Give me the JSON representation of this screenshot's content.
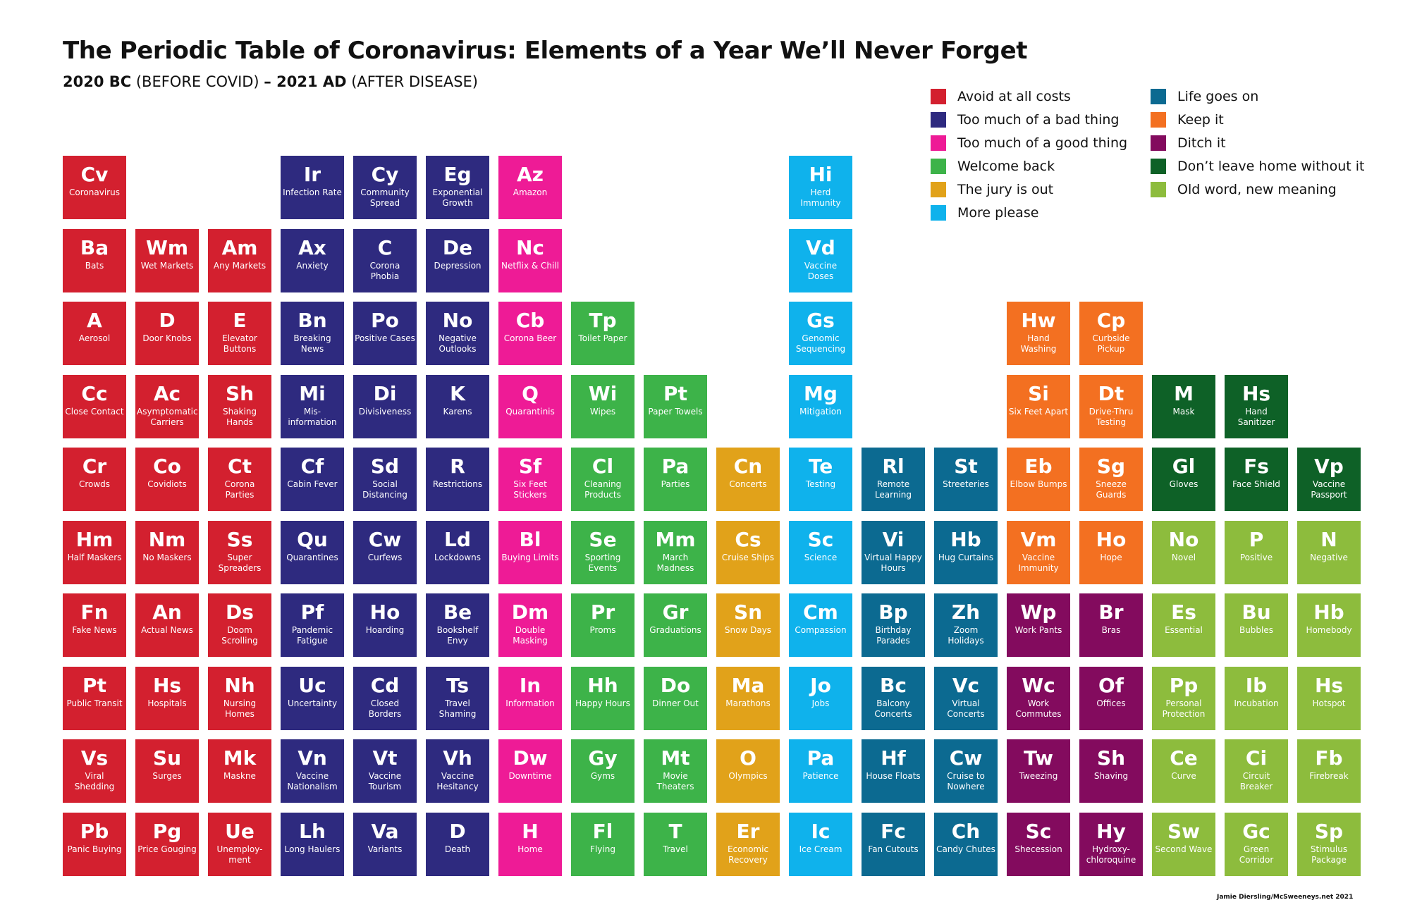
{
  "title": "The Periodic Table of Coronavirus: Elements of a Year We’ll Never Forget",
  "subtitle": {
    "part1_bold": "2020 BC",
    "part1": " (BEFORE COVID) ",
    "part2_bold": "– 2021 AD",
    "part2": " (AFTER DISEASE)"
  },
  "credit": "Jamie Diersling/McSweeneys.net 2021",
  "legend": [
    {
      "key": "avoid",
      "label": "Avoid at all costs",
      "color": "#d3202f"
    },
    {
      "key": "bad",
      "label": "Too much of a bad thing",
      "color": "#2e2a7f"
    },
    {
      "key": "good",
      "label": "Too much of a good thing",
      "color": "#ee1b96"
    },
    {
      "key": "welcome",
      "label": "Welcome back",
      "color": "#3db349"
    },
    {
      "key": "jury",
      "label": "The jury is out",
      "color": "#e1a21a"
    },
    {
      "key": "more",
      "label": "More please",
      "color": "#0fb2ec"
    },
    {
      "key": "life",
      "label": "Life goes on",
      "color": "#0c6a91"
    },
    {
      "key": "keep",
      "label": "Keep it",
      "color": "#f37021"
    },
    {
      "key": "ditch",
      "label": "Ditch it",
      "color": "#830b5e"
    },
    {
      "key": "dont",
      "label": "Don’t leave home without it",
      "color": "#0e6127"
    },
    {
      "key": "oldword",
      "label": "Old word, new meaning",
      "color": "#8dbc3d"
    }
  ],
  "elements": [
    {
      "sym": "Cv",
      "name": "Coronavirus",
      "cat": "avoid",
      "col": 0,
      "row": 0
    },
    {
      "sym": "Ir",
      "name": "Infection Rate",
      "cat": "bad",
      "col": 3,
      "row": 0
    },
    {
      "sym": "Cy",
      "name": "Community Spread",
      "cat": "bad",
      "col": 4,
      "row": 0
    },
    {
      "sym": "Eg",
      "name": "Exponential Growth",
      "cat": "bad",
      "col": 5,
      "row": 0
    },
    {
      "sym": "Az",
      "name": "Amazon",
      "cat": "good",
      "col": 6,
      "row": 0
    },
    {
      "sym": "Hi",
      "name": "Herd Immunity",
      "cat": "more",
      "col": 10,
      "row": 0
    },
    {
      "sym": "Ba",
      "name": "Bats",
      "cat": "avoid",
      "col": 0,
      "row": 1
    },
    {
      "sym": "Wm",
      "name": "Wet Markets",
      "cat": "avoid",
      "col": 1,
      "row": 1
    },
    {
      "sym": "Am",
      "name": "Any Markets",
      "cat": "avoid",
      "col": 2,
      "row": 1
    },
    {
      "sym": "Ax",
      "name": "Anxiety",
      "cat": "bad",
      "col": 3,
      "row": 1
    },
    {
      "sym": "C",
      "name": "Corona Phobia",
      "cat": "bad",
      "col": 4,
      "row": 1
    },
    {
      "sym": "De",
      "name": "Depression",
      "cat": "bad",
      "col": 5,
      "row": 1
    },
    {
      "sym": "Nc",
      "name": "Netflix & Chill",
      "cat": "good",
      "col": 6,
      "row": 1
    },
    {
      "sym": "Vd",
      "name": "Vaccine Doses",
      "cat": "more",
      "col": 10,
      "row": 1
    },
    {
      "sym": "A",
      "name": "Aerosol",
      "cat": "avoid",
      "col": 0,
      "row": 2
    },
    {
      "sym": "D",
      "name": "Door Knobs",
      "cat": "avoid",
      "col": 1,
      "row": 2
    },
    {
      "sym": "E",
      "name": "Elevator Buttons",
      "cat": "avoid",
      "col": 2,
      "row": 2
    },
    {
      "sym": "Bn",
      "name": "Breaking News",
      "cat": "bad",
      "col": 3,
      "row": 2
    },
    {
      "sym": "Po",
      "name": "Positive Cases",
      "cat": "bad",
      "col": 4,
      "row": 2
    },
    {
      "sym": "No",
      "name": "Negative Outlooks",
      "cat": "bad",
      "col": 5,
      "row": 2
    },
    {
      "sym": "Cb",
      "name": "Corona Beer",
      "cat": "good",
      "col": 6,
      "row": 2
    },
    {
      "sym": "Tp",
      "name": "Toilet Paper",
      "cat": "welcome",
      "col": 7,
      "row": 2
    },
    {
      "sym": "Gs",
      "name": "Genomic Sequencing",
      "cat": "more",
      "col": 10,
      "row": 2
    },
    {
      "sym": "Hw",
      "name": "Hand Washing",
      "cat": "keep",
      "col": 13,
      "row": 2
    },
    {
      "sym": "Cp",
      "name": "Curbside Pickup",
      "cat": "keep",
      "col": 14,
      "row": 2
    },
    {
      "sym": "Cc",
      "name": "Close Contact",
      "cat": "avoid",
      "col": 0,
      "row": 3
    },
    {
      "sym": "Ac",
      "name": "Asymptomatic Carriers",
      "cat": "avoid",
      "col": 1,
      "row": 3
    },
    {
      "sym": "Sh",
      "name": "Shaking Hands",
      "cat": "avoid",
      "col": 2,
      "row": 3
    },
    {
      "sym": "Mi",
      "name": "Mis-information",
      "cat": "bad",
      "col": 3,
      "row": 3
    },
    {
      "sym": "Di",
      "name": "Divisiveness",
      "cat": "bad",
      "col": 4,
      "row": 3
    },
    {
      "sym": "K",
      "name": "Karens",
      "cat": "bad",
      "col": 5,
      "row": 3
    },
    {
      "sym": "Q",
      "name": "Quarantinis",
      "cat": "good",
      "col": 6,
      "row": 3
    },
    {
      "sym": "Wi",
      "name": "Wipes",
      "cat": "welcome",
      "col": 7,
      "row": 3
    },
    {
      "sym": "Pt",
      "name": "Paper Towels",
      "cat": "welcome",
      "col": 8,
      "row": 3
    },
    {
      "sym": "Mg",
      "name": "Mitigation",
      "cat": "more",
      "col": 10,
      "row": 3
    },
    {
      "sym": "Si",
      "name": "Six Feet Apart",
      "cat": "keep",
      "col": 13,
      "row": 3
    },
    {
      "sym": "Dt",
      "name": "Drive-Thru Testing",
      "cat": "keep",
      "col": 14,
      "row": 3
    },
    {
      "sym": "M",
      "name": "Mask",
      "cat": "dont",
      "col": 15,
      "row": 3
    },
    {
      "sym": "Hs",
      "name": "Hand Sanitizer",
      "cat": "dont",
      "col": 16,
      "row": 3
    },
    {
      "sym": "Cr",
      "name": "Crowds",
      "cat": "avoid",
      "col": 0,
      "row": 4
    },
    {
      "sym": "Co",
      "name": "Covidiots",
      "cat": "avoid",
      "col": 1,
      "row": 4
    },
    {
      "sym": "Ct",
      "name": "Corona Parties",
      "cat": "avoid",
      "col": 2,
      "row": 4
    },
    {
      "sym": "Cf",
      "name": "Cabin Fever",
      "cat": "bad",
      "col": 3,
      "row": 4
    },
    {
      "sym": "Sd",
      "name": "Social Distancing",
      "cat": "bad",
      "col": 4,
      "row": 4
    },
    {
      "sym": "R",
      "name": "Restrictions",
      "cat": "bad",
      "col": 5,
      "row": 4
    },
    {
      "sym": "Sf",
      "name": "Six Feet Stickers",
      "cat": "good",
      "col": 6,
      "row": 4
    },
    {
      "sym": "Cl",
      "name": "Cleaning Products",
      "cat": "welcome",
      "col": 7,
      "row": 4
    },
    {
      "sym": "Pa",
      "name": "Parties",
      "cat": "welcome",
      "col": 8,
      "row": 4
    },
    {
      "sym": "Cn",
      "name": "Concerts",
      "cat": "jury",
      "col": 9,
      "row": 4
    },
    {
      "sym": "Te",
      "name": "Testing",
      "cat": "more",
      "col": 10,
      "row": 4
    },
    {
      "sym": "Rl",
      "name": "Remote Learning",
      "cat": "life",
      "col": 11,
      "row": 4
    },
    {
      "sym": "St",
      "name": "Streeteries",
      "cat": "life",
      "col": 12,
      "row": 4
    },
    {
      "sym": "Eb",
      "name": "Elbow Bumps",
      "cat": "keep",
      "col": 13,
      "row": 4
    },
    {
      "sym": "Sg",
      "name": "Sneeze Guards",
      "cat": "keep",
      "col": 14,
      "row": 4
    },
    {
      "sym": "Gl",
      "name": "Gloves",
      "cat": "dont",
      "col": 15,
      "row": 4
    },
    {
      "sym": "Fs",
      "name": "Face Shield",
      "cat": "dont",
      "col": 16,
      "row": 4
    },
    {
      "sym": "Vp",
      "name": "Vaccine Passport",
      "cat": "dont",
      "col": 17,
      "row": 4
    },
    {
      "sym": "Hm",
      "name": "Half Maskers",
      "cat": "avoid",
      "col": 0,
      "row": 5
    },
    {
      "sym": "Nm",
      "name": "No Maskers",
      "cat": "avoid",
      "col": 1,
      "row": 5
    },
    {
      "sym": "Ss",
      "name": "Super Spreaders",
      "cat": "avoid",
      "col": 2,
      "row": 5
    },
    {
      "sym": "Qu",
      "name": "Quarantines",
      "cat": "bad",
      "col": 3,
      "row": 5
    },
    {
      "sym": "Cw",
      "name": "Curfews",
      "cat": "bad",
      "col": 4,
      "row": 5
    },
    {
      "sym": "Ld",
      "name": "Lockdowns",
      "cat": "bad",
      "col": 5,
      "row": 5
    },
    {
      "sym": "Bl",
      "name": "Buying Limits",
      "cat": "good",
      "col": 6,
      "row": 5
    },
    {
      "sym": "Se",
      "name": "Sporting Events",
      "cat": "welcome",
      "col": 7,
      "row": 5
    },
    {
      "sym": "Mm",
      "name": "March Madness",
      "cat": "welcome",
      "col": 8,
      "row": 5
    },
    {
      "sym": "Cs",
      "name": "Cruise Ships",
      "cat": "jury",
      "col": 9,
      "row": 5
    },
    {
      "sym": "Sc",
      "name": "Science",
      "cat": "more",
      "col": 10,
      "row": 5
    },
    {
      "sym": "Vi",
      "name": "Virtual Happy Hours",
      "cat": "life",
      "col": 11,
      "row": 5
    },
    {
      "sym": "Hb",
      "name": "Hug Curtains",
      "cat": "life",
      "col": 12,
      "row": 5
    },
    {
      "sym": "Vm",
      "name": "Vaccine Immunity",
      "cat": "keep",
      "col": 13,
      "row": 5
    },
    {
      "sym": "Ho",
      "name": "Hope",
      "cat": "keep",
      "col": 14,
      "row": 5
    },
    {
      "sym": "No",
      "name": "Novel",
      "cat": "oldword",
      "col": 15,
      "row": 5
    },
    {
      "sym": "P",
      "name": "Positive",
      "cat": "oldword",
      "col": 16,
      "row": 5
    },
    {
      "sym": "N",
      "name": "Negative",
      "cat": "oldword",
      "col": 17,
      "row": 5
    },
    {
      "sym": "Fn",
      "name": "Fake News",
      "cat": "avoid",
      "col": 0,
      "row": 6
    },
    {
      "sym": "An",
      "name": "Actual News",
      "cat": "avoid",
      "col": 1,
      "row": 6
    },
    {
      "sym": "Ds",
      "name": "Doom Scrolling",
      "cat": "avoid",
      "col": 2,
      "row": 6
    },
    {
      "sym": "Pf",
      "name": "Pandemic Fatigue",
      "cat": "bad",
      "col": 3,
      "row": 6
    },
    {
      "sym": "Ho",
      "name": "Hoarding",
      "cat": "bad",
      "col": 4,
      "row": 6
    },
    {
      "sym": "Be",
      "name": "Bookshelf Envy",
      "cat": "bad",
      "col": 5,
      "row": 6
    },
    {
      "sym": "Dm",
      "name": "Double Masking",
      "cat": "good",
      "col": 6,
      "row": 6
    },
    {
      "sym": "Pr",
      "name": "Proms",
      "cat": "welcome",
      "col": 7,
      "row": 6
    },
    {
      "sym": "Gr",
      "name": "Graduations",
      "cat": "welcome",
      "col": 8,
      "row": 6
    },
    {
      "sym": "Sn",
      "name": "Snow Days",
      "cat": "jury",
      "col": 9,
      "row": 6
    },
    {
      "sym": "Cm",
      "name": "Compassion",
      "cat": "more",
      "col": 10,
      "row": 6
    },
    {
      "sym": "Bp",
      "name": "Birthday Parades",
      "cat": "life",
      "col": 11,
      "row": 6
    },
    {
      "sym": "Zh",
      "name": "Zoom Holidays",
      "cat": "life",
      "col": 12,
      "row": 6
    },
    {
      "sym": "Wp",
      "name": "Work Pants",
      "cat": "ditch",
      "col": 13,
      "row": 6
    },
    {
      "sym": "Br",
      "name": "Bras",
      "cat": "ditch",
      "col": 14,
      "row": 6
    },
    {
      "sym": "Es",
      "name": "Essential",
      "cat": "oldword",
      "col": 15,
      "row": 6
    },
    {
      "sym": "Bu",
      "name": "Bubbles",
      "cat": "oldword",
      "col": 16,
      "row": 6
    },
    {
      "sym": "Hb",
      "name": "Homebody",
      "cat": "oldword",
      "col": 17,
      "row": 6
    },
    {
      "sym": "Pt",
      "name": "Public Transit",
      "cat": "avoid",
      "col": 0,
      "row": 7
    },
    {
      "sym": "Hs",
      "name": "Hospitals",
      "cat": "avoid",
      "col": 1,
      "row": 7
    },
    {
      "sym": "Nh",
      "name": "Nursing Homes",
      "cat": "avoid",
      "col": 2,
      "row": 7
    },
    {
      "sym": "Uc",
      "name": "Uncertainty",
      "cat": "bad",
      "col": 3,
      "row": 7
    },
    {
      "sym": "Cd",
      "name": "Closed Borders",
      "cat": "bad",
      "col": 4,
      "row": 7
    },
    {
      "sym": "Ts",
      "name": "Travel Shaming",
      "cat": "bad",
      "col": 5,
      "row": 7
    },
    {
      "sym": "In",
      "name": "Information",
      "cat": "good",
      "col": 6,
      "row": 7
    },
    {
      "sym": "Hh",
      "name": "Happy Hours",
      "cat": "welcome",
      "col": 7,
      "row": 7
    },
    {
      "sym": "Do",
      "name": "Dinner Out",
      "cat": "welcome",
      "col": 8,
      "row": 7
    },
    {
      "sym": "Ma",
      "name": "Marathons",
      "cat": "jury",
      "col": 9,
      "row": 7
    },
    {
      "sym": "Jo",
      "name": "Jobs",
      "cat": "more",
      "col": 10,
      "row": 7
    },
    {
      "sym": "Bc",
      "name": "Balcony Concerts",
      "cat": "life",
      "col": 11,
      "row": 7
    },
    {
      "sym": "Vc",
      "name": "Virtual Concerts",
      "cat": "life",
      "col": 12,
      "row": 7
    },
    {
      "sym": "Wc",
      "name": "Work Commutes",
      "cat": "ditch",
      "col": 13,
      "row": 7
    },
    {
      "sym": "Of",
      "name": "Offices",
      "cat": "ditch",
      "col": 14,
      "row": 7
    },
    {
      "sym": "Pp",
      "name": "Personal Protection",
      "cat": "oldword",
      "col": 15,
      "row": 7
    },
    {
      "sym": "Ib",
      "name": "Incubation",
      "cat": "oldword",
      "col": 16,
      "row": 7
    },
    {
      "sym": "Hs",
      "name": "Hotspot",
      "cat": "oldword",
      "col": 17,
      "row": 7
    },
    {
      "sym": "Vs",
      "name": "Viral Shedding",
      "cat": "avoid",
      "col": 0,
      "row": 8
    },
    {
      "sym": "Su",
      "name": "Surges",
      "cat": "avoid",
      "col": 1,
      "row": 8
    },
    {
      "sym": "Mk",
      "name": "Maskne",
      "cat": "avoid",
      "col": 2,
      "row": 8
    },
    {
      "sym": "Vn",
      "name": "Vaccine Nationalism",
      "cat": "bad",
      "col": 3,
      "row": 8
    },
    {
      "sym": "Vt",
      "name": "Vaccine Tourism",
      "cat": "bad",
      "col": 4,
      "row": 8
    },
    {
      "sym": "Vh",
      "name": "Vaccine Hesitancy",
      "cat": "bad",
      "col": 5,
      "row": 8
    },
    {
      "sym": "Dw",
      "name": "Downtime",
      "cat": "good",
      "col": 6,
      "row": 8
    },
    {
      "sym": "Gy",
      "name": "Gyms",
      "cat": "welcome",
      "col": 7,
      "row": 8
    },
    {
      "sym": "Mt",
      "name": "Movie Theaters",
      "cat": "welcome",
      "col": 8,
      "row": 8
    },
    {
      "sym": "O",
      "name": "Olympics",
      "cat": "jury",
      "col": 9,
      "row": 8
    },
    {
      "sym": "Pa",
      "name": "Patience",
      "cat": "more",
      "col": 10,
      "row": 8
    },
    {
      "sym": "Hf",
      "name": "House Floats",
      "cat": "life",
      "col": 11,
      "row": 8
    },
    {
      "sym": "Cw",
      "name": "Cruise to Nowhere",
      "cat": "life",
      "col": 12,
      "row": 8
    },
    {
      "sym": "Tw",
      "name": "Tweezing",
      "cat": "ditch",
      "col": 13,
      "row": 8
    },
    {
      "sym": "Sh",
      "name": "Shaving",
      "cat": "ditch",
      "col": 14,
      "row": 8
    },
    {
      "sym": "Ce",
      "name": "Curve",
      "cat": "oldword",
      "col": 15,
      "row": 8
    },
    {
      "sym": "Ci",
      "name": "Circuit Breaker",
      "cat": "oldword",
      "col": 16,
      "row": 8
    },
    {
      "sym": "Fb",
      "name": "Firebreak",
      "cat": "oldword",
      "col": 17,
      "row": 8
    },
    {
      "sym": "Pb",
      "name": "Panic Buying",
      "cat": "avoid",
      "col": 0,
      "row": 9
    },
    {
      "sym": "Pg",
      "name": "Price Gouging",
      "cat": "avoid",
      "col": 1,
      "row": 9
    },
    {
      "sym": "Ue",
      "name": "Unemploy-ment",
      "cat": "avoid",
      "col": 2,
      "row": 9
    },
    {
      "sym": "Lh",
      "name": "Long Haulers",
      "cat": "bad",
      "col": 3,
      "row": 9
    },
    {
      "sym": "Va",
      "name": "Variants",
      "cat": "bad",
      "col": 4,
      "row": 9
    },
    {
      "sym": "D",
      "name": "Death",
      "cat": "bad",
      "col": 5,
      "row": 9
    },
    {
      "sym": "H",
      "name": "Home",
      "cat": "good",
      "col": 6,
      "row": 9
    },
    {
      "sym": "Fl",
      "name": "Flying",
      "cat": "welcome",
      "col": 7,
      "row": 9
    },
    {
      "sym": "T",
      "name": "Travel",
      "cat": "welcome",
      "col": 8,
      "row": 9
    },
    {
      "sym": "Er",
      "name": "Economic Recovery",
      "cat": "jury",
      "col": 9,
      "row": 9
    },
    {
      "sym": "Ic",
      "name": "Ice Cream",
      "cat": "more",
      "col": 10,
      "row": 9
    },
    {
      "sym": "Fc",
      "name": "Fan Cutouts",
      "cat": "life",
      "col": 11,
      "row": 9
    },
    {
      "sym": "Ch",
      "name": "Candy Chutes",
      "cat": "life",
      "col": 12,
      "row": 9
    },
    {
      "sym": "Sc",
      "name": "Shecession",
      "cat": "ditch",
      "col": 13,
      "row": 9
    },
    {
      "sym": "Hy",
      "name": "Hydroxy-chloroquine",
      "cat": "ditch",
      "col": 14,
      "row": 9
    },
    {
      "sym": "Sw",
      "name": "Second Wave",
      "cat": "oldword",
      "col": 15,
      "row": 9
    },
    {
      "sym": "Gc",
      "name": "Green Corridor",
      "cat": "oldword",
      "col": 16,
      "row": 9
    },
    {
      "sym": "Sp",
      "name": "Stimulus Package",
      "cat": "oldword",
      "col": 17,
      "row": 9
    }
  ]
}
